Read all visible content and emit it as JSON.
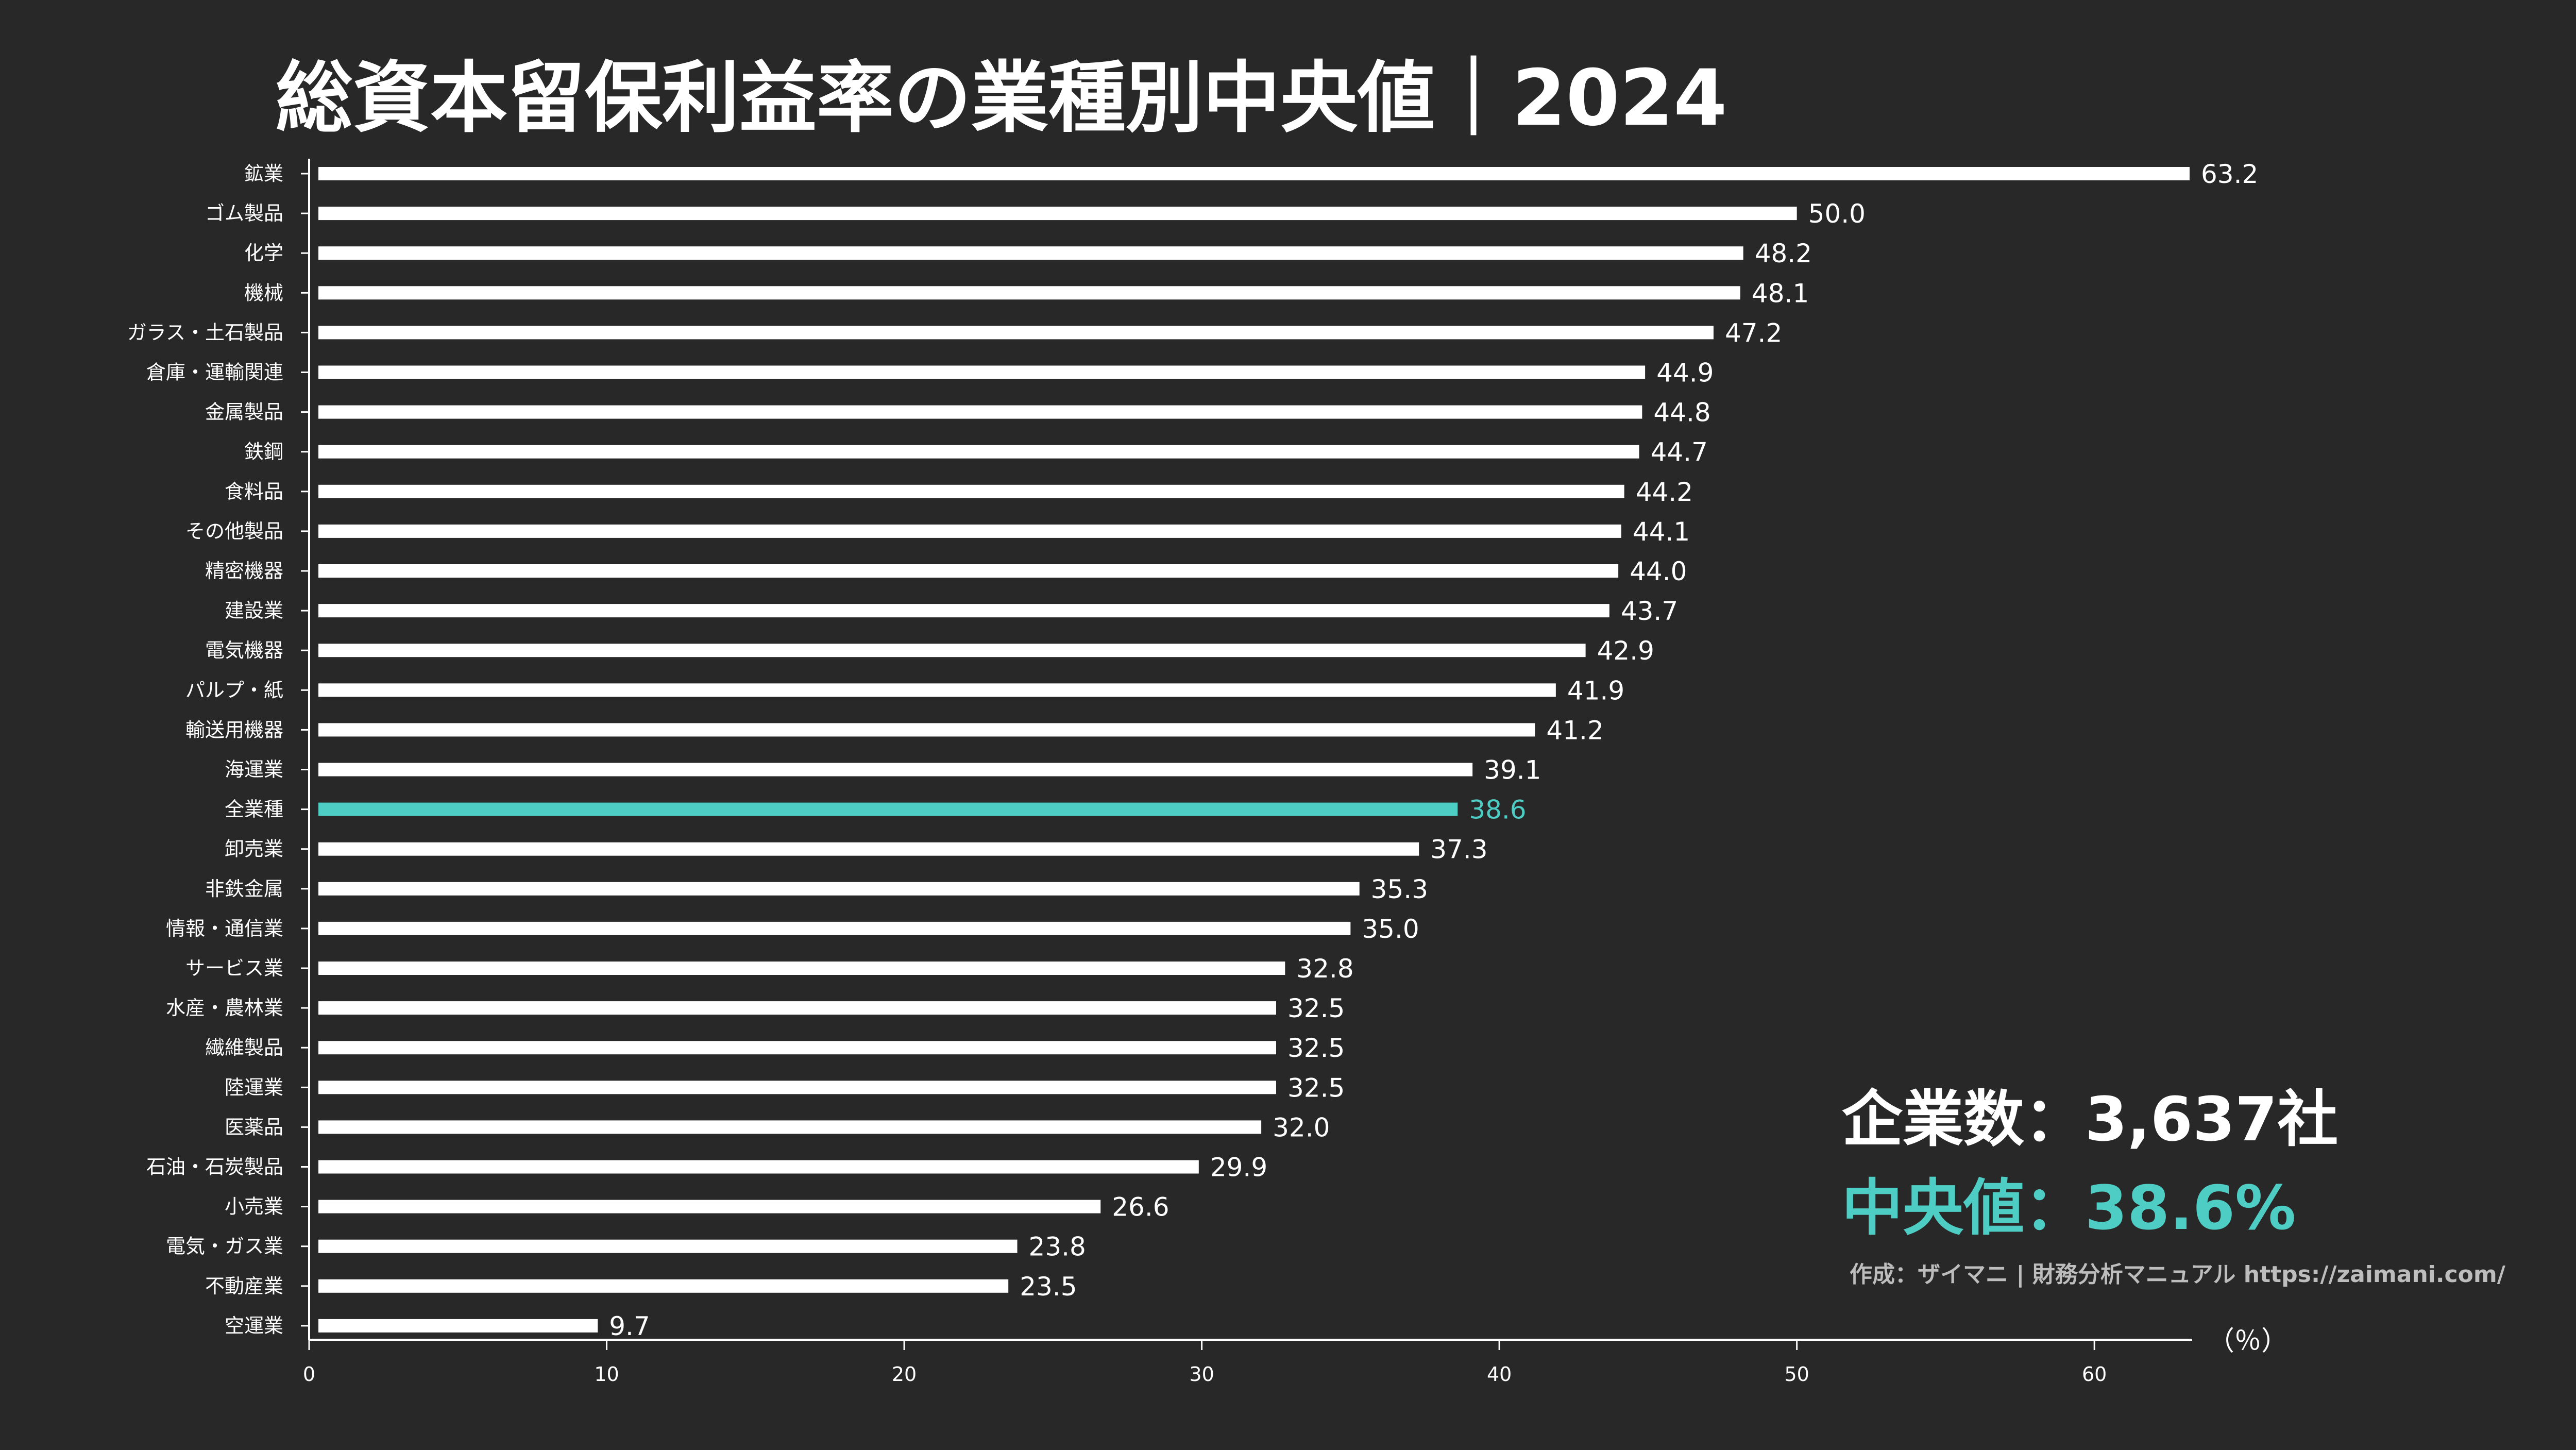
{
  "colors": {
    "background": "#282828",
    "bar": "#ffffff",
    "highlight": "#4ecdc4",
    "text": "#ffffff",
    "credit": "#bdbdbd"
  },
  "chart_data": {
    "type": "bar",
    "orientation": "horizontal",
    "title": "総資本留保利益率の業種別中央値｜2024",
    "xlabel": "（％）",
    "xlim": [
      0,
      63.2
    ],
    "xticks": [
      0,
      10,
      20,
      30,
      40,
      50,
      60
    ],
    "grid": false,
    "highlight_category": "全業種",
    "categories": [
      "鉱業",
      "ゴム製品",
      "化学",
      "機械",
      "ガラス・土石製品",
      "倉庫・運輸関連",
      "金属製品",
      "鉄鋼",
      "食料品",
      "その他製品",
      "精密機器",
      "建設業",
      "電気機器",
      "パルプ・紙",
      "輸送用機器",
      "海運業",
      "全業種",
      "卸売業",
      "非鉄金属",
      "情報・通信業",
      "サービス業",
      "水産・農林業",
      "繊維製品",
      "陸運業",
      "医薬品",
      "石油・石炭製品",
      "小売業",
      "電気・ガス業",
      "不動産業",
      "空運業"
    ],
    "values": [
      63.2,
      50.0,
      48.2,
      48.1,
      47.2,
      44.9,
      44.8,
      44.7,
      44.2,
      44.1,
      44.0,
      43.7,
      42.9,
      41.9,
      41.2,
      39.1,
      38.6,
      37.3,
      35.3,
      35.0,
      32.8,
      32.5,
      32.5,
      32.5,
      32.0,
      29.9,
      26.6,
      23.8,
      23.5,
      9.7
    ],
    "value_labels": [
      "63.2",
      "50.0",
      "48.2",
      "48.1",
      "47.2",
      "44.9",
      "44.8",
      "44.7",
      "44.2",
      "44.1",
      "44.0",
      "43.7",
      "42.9",
      "41.9",
      "41.2",
      "39.1",
      "38.6",
      "37.3",
      "35.3",
      "35.0",
      "32.8",
      "32.5",
      "32.5",
      "32.5",
      "32.0",
      "29.9",
      "26.6",
      "23.8",
      "23.5",
      "9.7"
    ]
  },
  "summary": {
    "company_count": "企業数：3,637社",
    "median": "中央値：38.6%"
  },
  "credit": "作成：ザイマニ | 財務分析マニュアル https://zaimani.com/"
}
